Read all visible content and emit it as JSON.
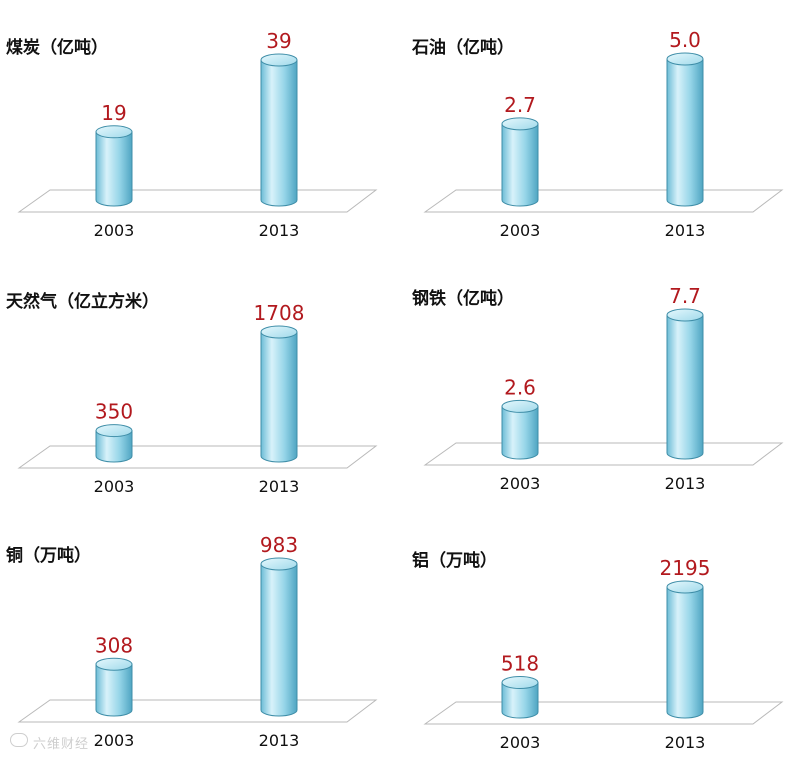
{
  "chart_data": [
    {
      "type": "bar",
      "title": "煤炭（亿吨）",
      "categories": [
        "2003",
        "2013"
      ],
      "values": [
        19,
        39
      ],
      "value_labels": [
        "19",
        "39"
      ]
    },
    {
      "type": "bar",
      "title": "石油（亿吨）",
      "categories": [
        "2003",
        "2013"
      ],
      "values": [
        2.7,
        5.0
      ],
      "value_labels": [
        "2.7",
        "5.0"
      ]
    },
    {
      "type": "bar",
      "title": "天然气（亿立方米）",
      "categories": [
        "2003",
        "2013"
      ],
      "values": [
        350,
        1708
      ],
      "value_labels": [
        "350",
        "1708"
      ]
    },
    {
      "type": "bar",
      "title": "钢铁（亿吨）",
      "categories": [
        "2003",
        "2013"
      ],
      "values": [
        2.6,
        7.7
      ],
      "value_labels": [
        "2.6",
        "7.7"
      ]
    },
    {
      "type": "bar",
      "title": "铜（万吨）",
      "categories": [
        "2003",
        "2013"
      ],
      "values": [
        308,
        983
      ],
      "value_labels": [
        "308",
        "983"
      ]
    },
    {
      "type": "bar",
      "title": "铝（万吨）",
      "categories": [
        "2003",
        "2013"
      ],
      "values": [
        518,
        2195
      ],
      "value_labels": [
        "518",
        "2195"
      ]
    }
  ],
  "style": {
    "bar_color": "#8fd3e6",
    "bar_edge_color": "#3f8ea8",
    "value_label_color": "#b2191e"
  },
  "watermark": {
    "icon": "weibo-logo-icon",
    "text": "六维财经"
  }
}
